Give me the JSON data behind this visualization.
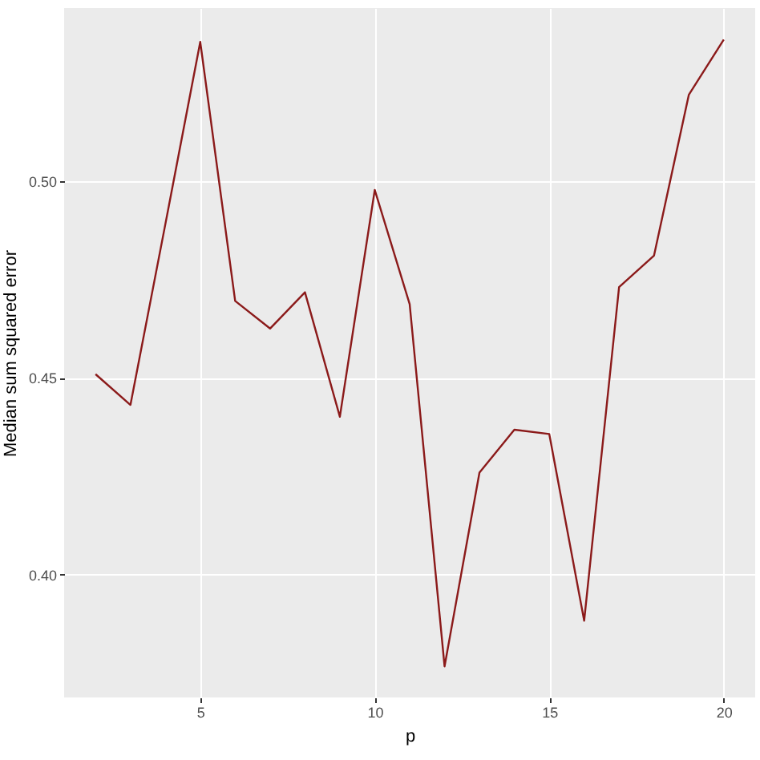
{
  "chart_data": {
    "type": "line",
    "xlabel": "p",
    "ylabel": "Median sum squared error",
    "x": [
      2,
      3,
      4,
      5,
      6,
      7,
      8,
      9,
      10,
      11,
      12,
      13,
      14,
      15,
      16,
      17,
      18,
      19,
      20
    ],
    "series": [
      {
        "color": "#8b1a1a",
        "values": [
          0.4509,
          0.4431,
          0.489,
          0.5353,
          0.4695,
          0.4625,
          0.4717,
          0.4401,
          0.4977,
          0.4687,
          0.3767,
          0.4259,
          0.4368,
          0.4357,
          0.3883,
          0.473,
          0.481,
          0.5219,
          0.5359
        ]
      }
    ],
    "xlim": [
      1.1,
      20.9
    ],
    "xticks": [
      5,
      10,
      15,
      20
    ],
    "ylim": [
      0.3688,
      0.5439
    ],
    "yticks": [
      {
        "value": 0.4,
        "label": "0.40"
      },
      {
        "value": 0.45,
        "label": "0.45"
      },
      {
        "value": 0.5,
        "label": "0.50"
      }
    ],
    "grid": true,
    "line_style": "solid"
  }
}
